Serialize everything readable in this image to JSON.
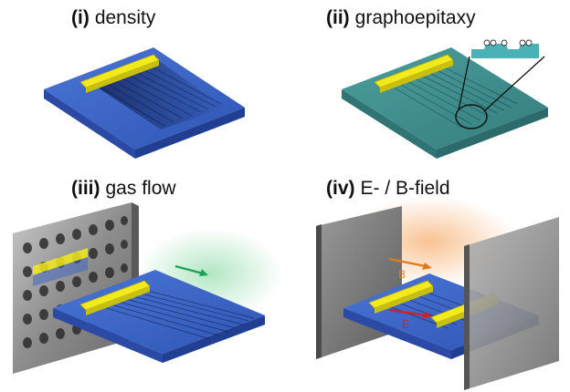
{
  "panels": [
    {
      "num": "(i)",
      "title": "density"
    },
    {
      "num": "(ii)",
      "title": "graphoepitaxy"
    },
    {
      "num": "(iii)",
      "title": "gas flow"
    },
    {
      "num": "(iv)",
      "title": "E- / B-field"
    }
  ],
  "field_labels": {
    "b": "B",
    "e": "E"
  },
  "colors": {
    "substrate_blue": "#3a63c4",
    "substrate_teal": "#3f8f8f",
    "catalyst_yellow": "#f2ea1c",
    "flow_arrow": "#1aa35a",
    "b_arrow": "#e07a1a",
    "e_arrow": "#d11f2a"
  }
}
